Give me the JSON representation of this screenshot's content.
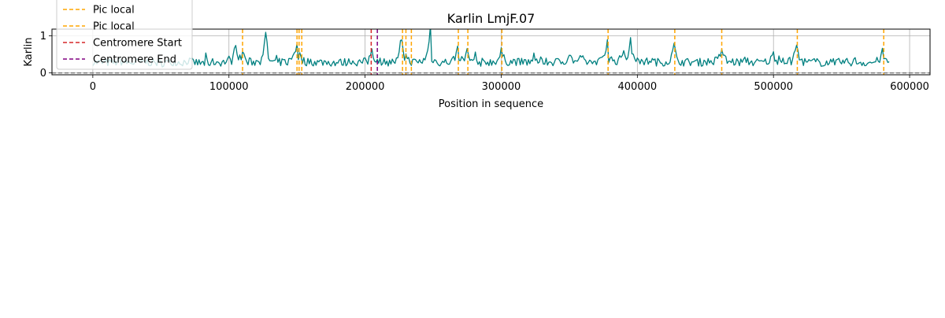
{
  "chart_data": {
    "type": "line",
    "title": "Karlin LmjF.07",
    "xlabel": "Position in sequence",
    "ylabel": "Karlin",
    "xlim": [
      -30000,
      615000
    ],
    "ylim": [
      -0.05,
      1.18
    ],
    "xticks": [
      0,
      100000,
      200000,
      300000,
      400000,
      500000,
      600000
    ],
    "xtick_labels": [
      "0",
      "100000",
      "200000",
      "300000",
      "400000",
      "500000",
      "600000"
    ],
    "yticks": [
      0,
      1
    ],
    "ytick_labels": [
      "0",
      "1"
    ],
    "grid": true,
    "legend_position": "upper-left",
    "series": [
      {
        "name": "",
        "color": "#008080",
        "x_start": 0,
        "x_end": 585000,
        "step": 1000,
        "baseline": 0.28,
        "x": [
          0,
          10000,
          20000,
          30000,
          40000,
          50000,
          60000,
          70000,
          80000,
          90000,
          100000,
          105000,
          110000,
          120000,
          127000,
          130000,
          140000,
          148000,
          150000,
          152000,
          160000,
          170000,
          180000,
          190000,
          200000,
          205000,
          210000,
          220000,
          227000,
          230000,
          240000,
          248000,
          250000,
          260000,
          268000,
          270000,
          275000,
          280000,
          290000,
          300000,
          310000,
          320000,
          330000,
          340000,
          350000,
          360000,
          370000,
          378000,
          380000,
          390000,
          395000,
          400000,
          410000,
          420000,
          427000,
          430000,
          440000,
          450000,
          462000,
          470000,
          480000,
          490000,
          500000,
          510000,
          517000,
          520000,
          530000,
          540000,
          550000,
          560000,
          570000,
          580000,
          585000
        ],
        "y": [
          0.3,
          0.28,
          0.32,
          0.27,
          0.3,
          0.26,
          0.31,
          0.33,
          0.25,
          0.3,
          0.35,
          0.75,
          0.5,
          0.3,
          1.0,
          0.35,
          0.3,
          0.55,
          0.78,
          0.45,
          0.32,
          0.3,
          0.28,
          0.33,
          0.3,
          0.62,
          0.35,
          0.3,
          0.85,
          0.45,
          0.3,
          1.12,
          0.35,
          0.3,
          0.65,
          0.4,
          0.55,
          0.32,
          0.3,
          0.55,
          0.32,
          0.3,
          0.35,
          0.3,
          0.5,
          0.35,
          0.32,
          0.85,
          0.4,
          0.6,
          0.78,
          0.45,
          0.35,
          0.3,
          0.7,
          0.35,
          0.3,
          0.32,
          0.62,
          0.3,
          0.35,
          0.28,
          0.5,
          0.32,
          0.72,
          0.35,
          0.3,
          0.28,
          0.3,
          0.32,
          0.27,
          0.52,
          0.3
        ]
      }
    ],
    "hlines": [
      {
        "y": 0,
        "color": "#808080",
        "style": "dashed"
      }
    ],
    "vlines": [
      {
        "label": "Pic local",
        "color": "#FFA500",
        "x": [
          110000,
          150000,
          151500,
          153500,
          227500,
          230000,
          234000,
          268500,
          275500,
          300500,
          378500,
          427500,
          462000,
          517500,
          581000
        ]
      },
      {
        "label": "Centromere Start",
        "color": "#D62728",
        "x": [
          204500
        ]
      },
      {
        "label": "Centromere End",
        "color": "#800080",
        "x": [
          209000
        ]
      }
    ],
    "legend": [
      {
        "label": "Pic local",
        "color": "#FFA500",
        "style": "dashed"
      },
      {
        "label": "Pic local",
        "color": "#FFA500",
        "style": "dashed"
      },
      {
        "label": "Centromere Start",
        "color": "#D62728",
        "style": "dashed"
      },
      {
        "label": "Centromere End",
        "color": "#800080",
        "style": "dashed"
      }
    ]
  }
}
